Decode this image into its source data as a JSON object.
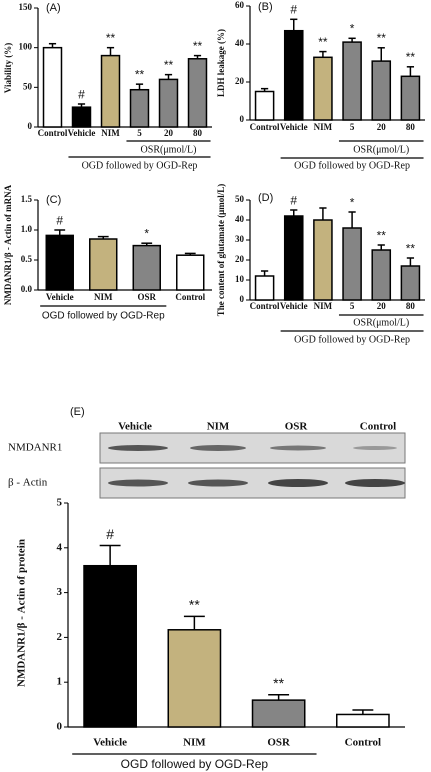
{
  "chart_data": [
    {
      "type": "bar",
      "panel_label": "(A)",
      "ylabel": "Viability (%)",
      "categories": [
        "Control",
        "Vehicle",
        "NIM",
        "5",
        "20",
        "80"
      ],
      "values": [
        100,
        25,
        90,
        47,
        60,
        86
      ],
      "errors": [
        5,
        4,
        10,
        7,
        6,
        4
      ],
      "colors": [
        "#ffffff",
        "#000000",
        "#c3b27e",
        "#858585",
        "#858585",
        "#858585"
      ],
      "significance": [
        null,
        "#",
        "**",
        "**",
        "**",
        "**"
      ],
      "ylim": [
        0,
        150
      ],
      "yticks": [
        0,
        50,
        100,
        150
      ],
      "group_labels": [
        "OSR(μmol/L)",
        "OGD followed by OGD-Rep"
      ]
    },
    {
      "type": "bar",
      "panel_label": "(B)",
      "ylabel": "LDH leakage (%)",
      "categories": [
        "Control",
        "Vehicle",
        "NIM",
        "5",
        "20",
        "80"
      ],
      "values": [
        15,
        47,
        33,
        41,
        31,
        23
      ],
      "errors": [
        1.5,
        6,
        3,
        2,
        7,
        5
      ],
      "colors": [
        "#ffffff",
        "#000000",
        "#c3b27e",
        "#858585",
        "#858585",
        "#858585"
      ],
      "significance": [
        null,
        "#",
        "**",
        "*",
        "**",
        "**"
      ],
      "ylim": [
        0,
        60
      ],
      "yticks": [
        0,
        20,
        40,
        60
      ],
      "group_labels": [
        "OSR(μmol/L)",
        "OGD followed by OGD-Rep"
      ]
    },
    {
      "type": "bar",
      "panel_label": "(C)",
      "ylabel": "NMDANR1/β - Actin of mRNA",
      "categories": [
        "Vehicle",
        "NIM",
        "OSR",
        "Control"
      ],
      "values": [
        0.91,
        0.85,
        0.74,
        0.58
      ],
      "errors": [
        0.09,
        0.04,
        0.04,
        0.03
      ],
      "colors": [
        "#000000",
        "#c3b27e",
        "#858585",
        "#ffffff"
      ],
      "significance": [
        "#",
        null,
        "*",
        null
      ],
      "ylim": [
        0,
        1.5
      ],
      "yticks": [
        {
          "value": 0,
          "label": "0.0"
        },
        {
          "value": 0.5,
          "label": "0.5"
        },
        {
          "value": 1,
          "label": "1.0"
        },
        {
          "value": 1.5,
          "label": "1.5"
        }
      ],
      "group_labels": [
        "OGD followed by OGD-Rep"
      ]
    },
    {
      "type": "bar",
      "panel_label": "(D)",
      "ylabel": "The content of glutamate (μmol/L)",
      "categories": [
        "Control",
        "Vehicle",
        "NIM",
        "5",
        "20",
        "80"
      ],
      "values": [
        12,
        42,
        40,
        36,
        25,
        17
      ],
      "errors": [
        2.5,
        3,
        6,
        8,
        2.5,
        4
      ],
      "colors": [
        "#ffffff",
        "#000000",
        "#c3b27e",
        "#858585",
        "#858585",
        "#858585"
      ],
      "significance": [
        null,
        "#",
        null,
        "*",
        "**",
        "**"
      ],
      "ylim": [
        0,
        50
      ],
      "yticks": [
        0,
        10,
        20,
        30,
        40,
        50
      ],
      "group_labels": [
        "OSR(μmol/L)",
        "OGD followed by OGD-Rep"
      ]
    },
    {
      "type": "bar",
      "ylabel": "NMDANR1/β - Actin of protein",
      "categories": [
        "Vehicle",
        "NIM",
        "OSR",
        "Control"
      ],
      "values": [
        3.6,
        2.17,
        0.6,
        0.28
      ],
      "errors": [
        0.45,
        0.3,
        0.12,
        0.1
      ],
      "colors": [
        "#000000",
        "#c3b27e",
        "#858585",
        "#ffffff"
      ],
      "significance": [
        "#",
        "**",
        "**",
        null
      ],
      "ylim": [
        0,
        5
      ],
      "yticks": [
        0,
        1,
        2,
        3,
        4,
        5
      ],
      "group_labels": [
        "OGD followed by OGD-Rep"
      ]
    }
  ],
  "blot": {
    "panel_label": "(E)",
    "lanes": [
      "Vehicle",
      "NIM",
      "OSR",
      "Control"
    ],
    "rows": [
      "NMDANR1",
      "β - Actin"
    ]
  }
}
